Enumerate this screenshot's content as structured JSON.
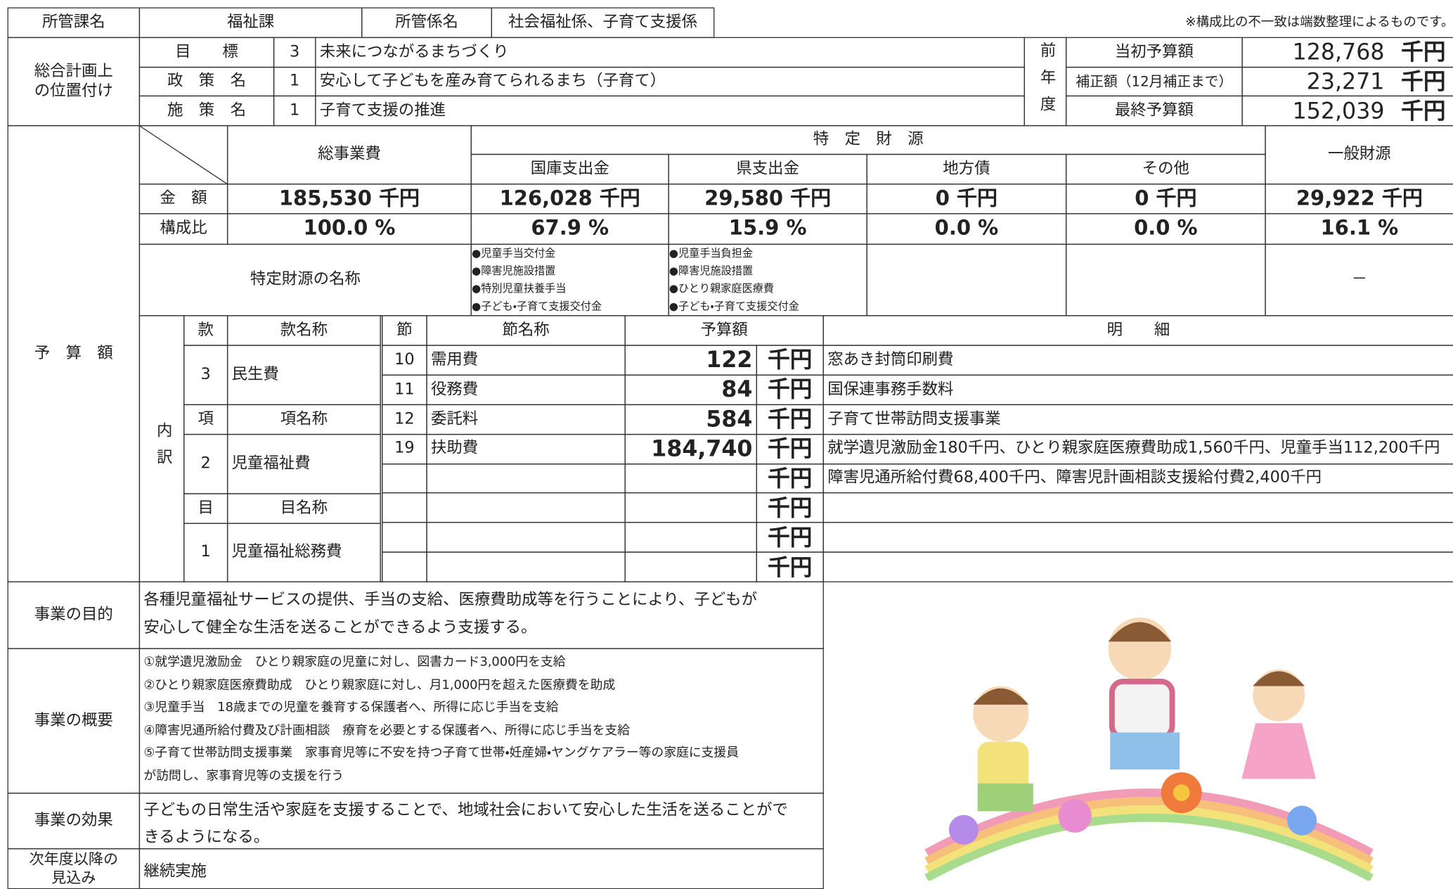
{
  "header": {
    "dept_label": "所管課名",
    "dept": "福祉課",
    "section_label": "所管係名",
    "section": "社会福祉係、子育て支援係",
    "note": "※構成比の不一致は端数整理によるものです。"
  },
  "plan": {
    "label": "総合計画上の位置付け",
    "rows": [
      [
        "目　　標",
        "3",
        "未来につながるまちづくり"
      ],
      [
        "政　策　名",
        "1",
        "安心して子どもを産み育てられるまち（子育て）"
      ],
      [
        "施　策　名",
        "1",
        "子育て支援の推進"
      ]
    ]
  },
  "prior_year": {
    "label": "前年度",
    "rows": [
      [
        "当初予算額",
        "128,768",
        "千円"
      ],
      [
        "補正額（12月補正まで）",
        "23,271",
        "千円"
      ],
      [
        "最終予算額",
        "152,039",
        "千円"
      ]
    ]
  },
  "budget": {
    "label": "予　算　額",
    "header": {
      "total": "総事業費",
      "specific": "特　定　財　源",
      "sources": [
        "国庫支出金",
        "県支出金",
        "地方債",
        "その他"
      ],
      "general": "一般財源"
    },
    "amount": {
      "label": "金　額",
      "values": [
        "185,530 千円",
        "126,028 千円",
        "29,580 千円",
        "0 千円",
        "0 千円",
        "29,922 千円"
      ]
    },
    "ratio": {
      "label": "構成比",
      "values": [
        "100.0 %",
        "67.9 %",
        "15.9 %",
        "0.0 %",
        "0.0 %",
        "16.1 %"
      ]
    },
    "source_names": {
      "label": "特定財源の名称",
      "lists": [
        [
          "●児童手当交付金",
          "●障害児施設措置",
          "●特別児童扶養手当",
          "●子ども・子育て支援交付金"
        ],
        [
          "●児童手当負担金",
          "●障害児施設措置",
          "●ひとり親家庭医療費",
          "●子ども・子育て支援交付金"
        ],
        [],
        [],
        [
          "－"
        ]
      ]
    },
    "breakdown": {
      "label": "内訳",
      "kan_header": [
        "款",
        "款名称"
      ],
      "kan": [
        "3",
        "民生費"
      ],
      "kou_header": [
        "項",
        "項名称"
      ],
      "kou": [
        "2",
        "児童福祉費"
      ],
      "moku_header": [
        "目",
        "目名称"
      ],
      "moku": [
        "1",
        "児童福祉総務費"
      ],
      "setsu_header": [
        "節",
        "節名称",
        "予算額",
        "明　　細"
      ],
      "rows": [
        {
          "no": "10",
          "name": "需用費",
          "amount": "122",
          "unit": "千円",
          "detail": "窓あき封筒印刷費"
        },
        {
          "no": "11",
          "name": "役務費",
          "amount": "84",
          "unit": "千円",
          "detail": "国保連事務手数料"
        },
        {
          "no": "12",
          "name": "委託料",
          "amount": "584",
          "unit": "千円",
          "detail": "子育て世帯訪問支援事業"
        },
        {
          "no": "19",
          "name": "扶助費",
          "amount": "184,740",
          "unit": "千円",
          "detail": "就学遺児激励金180千円、ひとり親家庭医療費助成1,560千円、児童手当112,200千円"
        },
        {
          "unit": "千円",
          "detail": "障害児通所給付費68,400千円、障害児計画相談支援給付費2,400千円"
        },
        {
          "unit": "千円"
        },
        {
          "unit": "千円"
        },
        {
          "unit": "千円"
        }
      ]
    }
  },
  "purpose": {
    "label": "事業の目的",
    "lines": [
      "各種児童福祉サービスの提供、手当の支給、医療費助成等を行うことにより、子どもが",
      "安心して健全な生活を送ることができるよう支援する。"
    ]
  },
  "overview": {
    "label": "事業の概要",
    "lines": [
      "①就学遺児激励金　ひとり親家庭の児童に対し、図書カード3,000円を支給",
      "②ひとり親家庭医療費助成　ひとり親家庭に対し、月1,000円を超えた医療費を助成",
      "③児童手当　18歳までの児童を養育する保護者へ、所得に応じ手当を支給",
      "④障害児通所給付費及び計画相談　療育を必要とする保護者へ、所得に応じ手当を支給",
      "⑤子育て世帯訪問支援事業　家事育児等に不安を持つ子育て世帯・妊産婦・ヤングケアラー等の家庭に支援員",
      "が訪問し、家事育児等の支援を行う"
    ]
  },
  "effect": {
    "label": "事業の効果",
    "lines": [
      "子どもの日常生活や家庭を支援することで、地域社会において安心した生活を送ることがで",
      "きるようになる。"
    ]
  },
  "outlook": {
    "label": "次年度以降の見込み",
    "lines": [
      "継続実施"
    ]
  }
}
